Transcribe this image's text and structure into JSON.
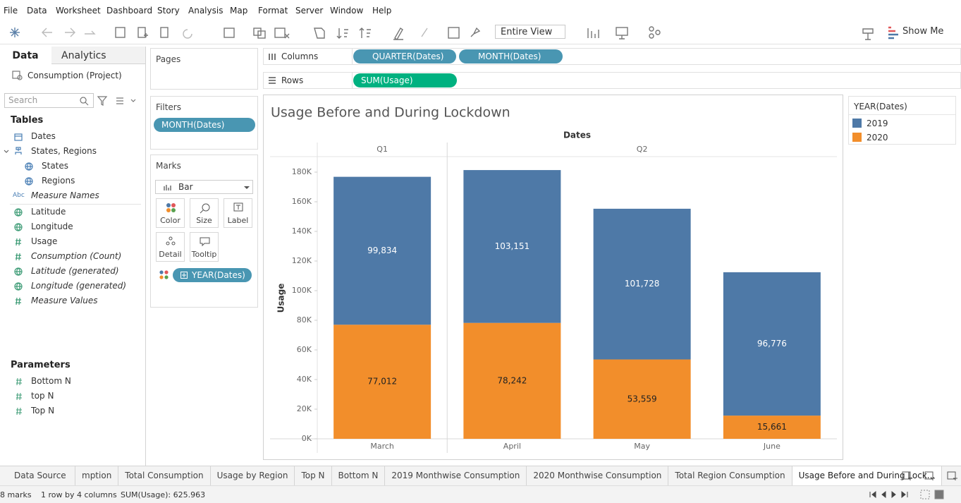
{
  "menu": [
    "File",
    "Data",
    "Worksheet",
    "Dashboard",
    "Story",
    "Analysis",
    "Map",
    "Format",
    "Server",
    "Window",
    "Help"
  ],
  "toolbar": {
    "fit": "Entire View",
    "show_me": "Show Me"
  },
  "data_pane": {
    "tabs": [
      "Data",
      "Analytics"
    ],
    "source": "Consumption (Project)",
    "search": "Search",
    "tables_heading": "Tables",
    "fields": [
      {
        "name": "Dates",
        "kind": "date",
        "role": "dimension"
      },
      {
        "name": "States, Regions",
        "kind": "hierarchy",
        "role": "dimension"
      },
      {
        "name": "States",
        "kind": "geo",
        "role": "dimension",
        "indent": true
      },
      {
        "name": "Regions",
        "kind": "geo",
        "role": "dimension",
        "indent": true
      },
      {
        "name": "Measure Names",
        "kind": "string",
        "type_label": "Abc",
        "role": "dimension",
        "italic": true
      },
      {
        "name": "Latitude",
        "kind": "geo",
        "role": "measure"
      },
      {
        "name": "Longitude",
        "kind": "geo",
        "role": "measure"
      },
      {
        "name": "Usage",
        "kind": "number",
        "role": "measure"
      },
      {
        "name": "Consumption (Count)",
        "kind": "number",
        "role": "measure",
        "italic": true
      },
      {
        "name": "Latitude (generated)",
        "kind": "geo",
        "role": "measure",
        "italic": true
      },
      {
        "name": "Longitude (generated)",
        "kind": "geo",
        "role": "measure",
        "italic": true
      },
      {
        "name": "Measure Values",
        "kind": "number",
        "role": "measure",
        "italic": true
      }
    ],
    "parameters_heading": "Parameters",
    "parameters": [
      "Bottom N",
      "top N",
      "Top N"
    ]
  },
  "cards": {
    "pages": "Pages",
    "filters": {
      "title": "Filters",
      "pills": [
        "MONTH(Dates)"
      ]
    },
    "marks": {
      "title": "Marks",
      "mark_type": "Bar",
      "buttons": [
        "Color",
        "Size",
        "Label",
        "Detail",
        "Tooltip"
      ],
      "pill": "YEAR(Dates)"
    }
  },
  "shelves": {
    "columns": {
      "label": "Columns",
      "pills": [
        "QUARTER(Dates)",
        "MONTH(Dates)"
      ]
    },
    "rows": {
      "label": "Rows",
      "pills": [
        "SUM(Usage)"
      ]
    }
  },
  "chart_data": {
    "type": "stacked-bar",
    "title": "Usage Before and During Lockdown",
    "x_label": "Dates",
    "y_label": "Usage",
    "quarters": [
      {
        "label": "Q1",
        "categories": 1
      },
      {
        "label": "Q2",
        "categories": 3
      }
    ],
    "categories": [
      "March",
      "April",
      "May",
      "June"
    ],
    "legend_title": "YEAR(Dates)",
    "series": [
      {
        "name": "2019",
        "color": "#4e79a7",
        "values": [
          99834,
          103151,
          101728,
          96776
        ],
        "value_labels": [
          "99,834",
          "103,151",
          "101,728",
          "96,776"
        ]
      },
      {
        "name": "2020",
        "color": "#f28e2b",
        "values": [
          77012,
          78242,
          53559,
          15661
        ],
        "value_labels": [
          "77,012",
          "78,242",
          "53,559",
          "15,661"
        ]
      }
    ],
    "ylim": [
      0,
      190000
    ],
    "yticks": [
      {
        "value": 0,
        "label": "0K"
      },
      {
        "value": 20000,
        "label": "20K"
      },
      {
        "value": 40000,
        "label": "40K"
      },
      {
        "value": 60000,
        "label": "60K"
      },
      {
        "value": 80000,
        "label": "80K"
      },
      {
        "value": 100000,
        "label": "100K"
      },
      {
        "value": 120000,
        "label": "120K"
      },
      {
        "value": 140000,
        "label": "140K"
      },
      {
        "value": 160000,
        "label": "160K"
      },
      {
        "value": 180000,
        "label": "180K"
      }
    ]
  },
  "sheet_tabs": [
    "Data Source",
    "mption",
    "Total Consumption",
    "Usage by Region",
    "Top N",
    "Bottom N",
    "2019 Monthwise Consumption",
    "2020 Monthwise Consumption",
    "Total Region Consumption",
    "Usage Before and During Lock..."
  ],
  "status": [
    "8 marks",
    "1 row by 4 columns",
    "SUM(Usage): 625.963"
  ]
}
